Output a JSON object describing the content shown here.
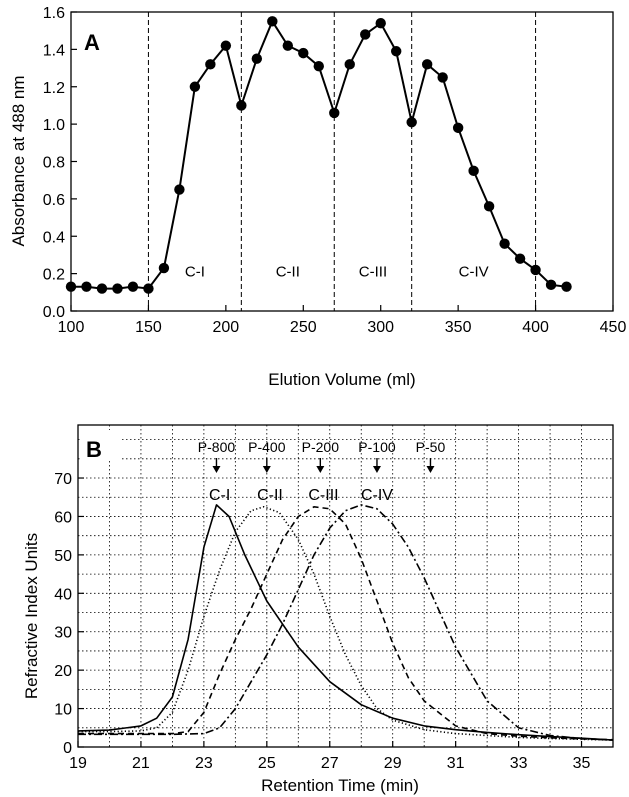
{
  "chart_data": [
    {
      "type": "line",
      "panel_label": "A",
      "xlabel": "Elution Volume (ml)",
      "ylabel": "Absorbance at 488 nm",
      "xlim": [
        100,
        450
      ],
      "ylim": [
        0.0,
        1.6
      ],
      "xticks": [
        100,
        150,
        200,
        250,
        300,
        350,
        400,
        450
      ],
      "yticks": [
        "0.0",
        "0.2",
        "0.4",
        "0.6",
        "0.8",
        "1.0",
        "1.2",
        "1.4",
        "1.6"
      ],
      "vlines": [
        150,
        210,
        270,
        320,
        400
      ],
      "region_labels": [
        {
          "text": "C-I",
          "x": 180,
          "y": 0.13
        },
        {
          "text": "C-II",
          "x": 240,
          "y": 0.13
        },
        {
          "text": "C-III",
          "x": 295,
          "y": 0.13
        },
        {
          "text": "C-IV",
          "x": 360,
          "y": 0.13
        }
      ],
      "series": [
        {
          "x": [
            100,
            110,
            120,
            130,
            140,
            150,
            160,
            170,
            180,
            190,
            200,
            210,
            220,
            230,
            240,
            250,
            260,
            270,
            280,
            290,
            300,
            310,
            320,
            330,
            340,
            350,
            360,
            370,
            380,
            390,
            400,
            410,
            420
          ],
          "y": [
            0.13,
            0.13,
            0.12,
            0.12,
            0.13,
            0.12,
            0.23,
            0.65,
            1.2,
            1.32,
            1.42,
            1.1,
            1.35,
            1.55,
            1.42,
            1.38,
            1.31,
            1.06,
            1.32,
            1.48,
            1.54,
            1.39,
            1.01,
            1.32,
            1.25,
            0.98,
            0.75,
            0.56,
            0.36,
            0.28,
            0.22,
            0.14,
            0.13
          ]
        }
      ]
    },
    {
      "type": "line",
      "panel_label": "B",
      "xlabel": "Retention Time (min)",
      "ylabel": "Refractive Index Units",
      "xlim": [
        19,
        36
      ],
      "ylim": [
        0,
        70
      ],
      "xticks": [
        19,
        21,
        23,
        25,
        27,
        29,
        31,
        33,
        35
      ],
      "yticks": [
        0,
        10,
        20,
        30,
        40,
        50,
        60,
        70
      ],
      "grid": true,
      "standards": [
        {
          "label": "P-800",
          "x": 23.4
        },
        {
          "label": "P-400",
          "x": 25.0
        },
        {
          "label": "P-200",
          "x": 26.7
        },
        {
          "label": "P-100",
          "x": 28.5
        },
        {
          "label": "P-50",
          "x": 30.2
        }
      ],
      "peak_labels": [
        {
          "text": "C-I",
          "x": 23.5
        },
        {
          "text": "C-II",
          "x": 25.1
        },
        {
          "text": "C-III",
          "x": 26.8
        },
        {
          "text": "C-IV",
          "x": 28.5
        }
      ],
      "series": [
        {
          "style": "solid",
          "x": [
            19,
            20,
            21,
            21.5,
            22,
            22.5,
            23,
            23.4,
            23.8,
            24.3,
            25,
            26,
            27,
            28,
            29,
            30,
            31,
            32,
            33,
            34,
            35,
            36
          ],
          "y": [
            4.2,
            4.4,
            5.5,
            7.5,
            13,
            28,
            52,
            63,
            60,
            50,
            38,
            26,
            17,
            11,
            7.5,
            5.5,
            4.5,
            3.8,
            3.2,
            2.7,
            2.3,
            1.8
          ]
        },
        {
          "style": "dotted",
          "x": [
            19,
            20,
            21,
            21.5,
            22,
            22.5,
            23,
            23.5,
            24,
            24.5,
            24.9,
            25.4,
            26,
            26.5,
            27,
            27.5,
            28,
            28.5,
            29,
            30,
            31,
            32,
            33,
            34,
            35,
            36
          ],
          "y": [
            4,
            4,
            4.2,
            5,
            9,
            20,
            34,
            46,
            56,
            61.5,
            62.5,
            61,
            54,
            45,
            34,
            24,
            16,
            10,
            7,
            4.5,
            3.5,
            3,
            2.5,
            2.2,
            2,
            1.8
          ]
        },
        {
          "style": "dashed",
          "x": [
            19,
            21,
            22,
            22.5,
            23,
            23.5,
            24,
            24.5,
            25,
            25.5,
            26,
            26.5,
            27,
            27.5,
            28,
            28.5,
            29,
            29.5,
            30,
            31,
            32,
            33,
            34,
            35,
            36
          ],
          "y": [
            3.5,
            3.5,
            3.5,
            4,
            9,
            19,
            28,
            36,
            45,
            54,
            60,
            62.5,
            62,
            58,
            49,
            38,
            27,
            18,
            12,
            5.5,
            3.5,
            2.8,
            2.4,
            2.1,
            1.9
          ]
        },
        {
          "style": "dashdot",
          "x": [
            19,
            22,
            23,
            23.5,
            24,
            24.5,
            25,
            25.5,
            26,
            26.5,
            27,
            27.5,
            28,
            28.5,
            29,
            29.5,
            30,
            30.5,
            31,
            32,
            33,
            34,
            35,
            36
          ],
          "y": [
            3.3,
            3.3,
            3.5,
            5,
            10,
            17,
            24,
            32,
            41,
            50,
            57,
            61.5,
            63,
            62,
            58,
            52,
            44,
            35,
            26,
            12,
            5,
            3,
            2.2,
            1.8
          ]
        }
      ]
    }
  ]
}
